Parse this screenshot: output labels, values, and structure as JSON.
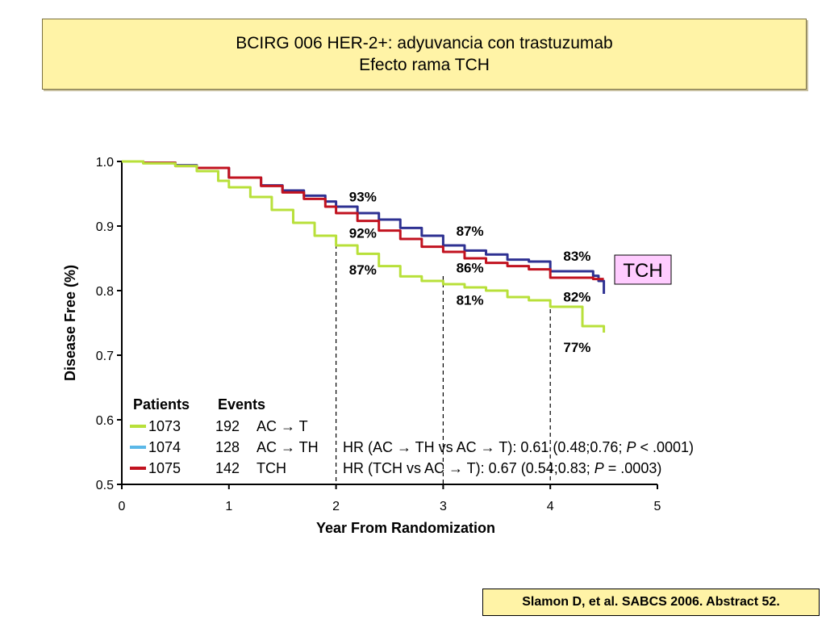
{
  "header": {
    "title_line1": "BCIRG 006 HER-2+: adyuvancia con trastuzumab",
    "title_line2": "Efecto rama TCH"
  },
  "citation": "Slamon D, et al. SABCS 2006. Abstract 52.",
  "colors": {
    "title_bg": "#fff3a6",
    "ac_t": "#b8e03a",
    "ac_th": "#2e3192",
    "tch": "#c1121f",
    "legend_ac_th_swatch": "#5bb8e8",
    "tch_box_bg": "#ffccff"
  },
  "chart_data": {
    "type": "line",
    "xlabel": "Year From Randomization",
    "ylabel": "Disease Free (%)",
    "xlim": [
      0,
      5
    ],
    "ylim": [
      0.5,
      1.0
    ],
    "xticks": [
      "0",
      "1",
      "2",
      "3",
      "4",
      "5"
    ],
    "yticks": [
      "0.5",
      "0.6",
      "0.7",
      "0.8",
      "0.9",
      "1.0"
    ],
    "xtick_values": [
      0,
      1,
      2,
      3,
      4,
      5
    ],
    "ytick_values": [
      0.5,
      0.6,
      0.7,
      0.8,
      0.9,
      1.0
    ],
    "grid": false,
    "reference_lines_x": [
      2,
      3,
      4
    ],
    "series": [
      {
        "key": "ac_th",
        "color": "#2e3192",
        "x": [
          0,
          0.2,
          0.5,
          0.7,
          1.0,
          1.3,
          1.5,
          1.7,
          1.9,
          2.0,
          2.2,
          2.4,
          2.6,
          2.8,
          3.0,
          3.2,
          3.4,
          3.6,
          3.8,
          4.0,
          4.2,
          4.4,
          4.45,
          4.5
        ],
        "y": [
          1.0,
          0.998,
          0.994,
          0.99,
          0.975,
          0.963,
          0.955,
          0.947,
          0.938,
          0.93,
          0.92,
          0.91,
          0.897,
          0.885,
          0.87,
          0.862,
          0.856,
          0.848,
          0.845,
          0.83,
          0.83,
          0.823,
          0.815,
          0.795
        ]
      },
      {
        "key": "tch",
        "color": "#c1121f",
        "x": [
          0,
          0.2,
          0.5,
          0.7,
          1.0,
          1.3,
          1.5,
          1.7,
          1.9,
          2.0,
          2.2,
          2.4,
          2.6,
          2.8,
          3.0,
          3.2,
          3.4,
          3.6,
          3.8,
          4.0,
          4.2,
          4.4,
          4.5
        ],
        "y": [
          1.0,
          0.998,
          0.993,
          0.99,
          0.975,
          0.962,
          0.952,
          0.942,
          0.93,
          0.92,
          0.908,
          0.893,
          0.88,
          0.868,
          0.86,
          0.85,
          0.843,
          0.838,
          0.833,
          0.82,
          0.82,
          0.818,
          0.818
        ]
      },
      {
        "key": "ac_t",
        "color": "#b8e03a",
        "x": [
          0,
          0.2,
          0.5,
          0.7,
          0.9,
          1.0,
          1.2,
          1.4,
          1.6,
          1.8,
          2.0,
          2.2,
          2.4,
          2.6,
          2.8,
          3.0,
          3.2,
          3.4,
          3.6,
          3.8,
          4.0,
          4.2,
          4.3,
          4.5
        ],
        "y": [
          1.0,
          0.997,
          0.993,
          0.985,
          0.97,
          0.96,
          0.945,
          0.925,
          0.905,
          0.885,
          0.87,
          0.857,
          0.838,
          0.822,
          0.815,
          0.81,
          0.805,
          0.8,
          0.79,
          0.785,
          0.775,
          0.775,
          0.745,
          0.735
        ]
      }
    ],
    "annotations": [
      {
        "text": "93%",
        "x": 2.25,
        "y": 0.938
      },
      {
        "text": "92%",
        "x": 2.25,
        "y": 0.882
      },
      {
        "text": "87%",
        "x": 2.25,
        "y": 0.825
      },
      {
        "text": "87%",
        "x": 3.25,
        "y": 0.885
      },
      {
        "text": "86%",
        "x": 3.25,
        "y": 0.828
      },
      {
        "text": "81%",
        "x": 3.25,
        "y": 0.778
      },
      {
        "text": "83%",
        "x": 4.25,
        "y": 0.846
      },
      {
        "text": "82%",
        "x": 4.25,
        "y": 0.783
      },
      {
        "text": "77%",
        "x": 4.25,
        "y": 0.705
      }
    ],
    "callout": {
      "text": "TCH"
    },
    "legend": {
      "header_patients": "Patients",
      "header_events": "Events",
      "rows": [
        {
          "key": "ac_t",
          "patients": "1073",
          "events": "192",
          "arm": "AC → T",
          "hr": ""
        },
        {
          "key": "ac_th",
          "patients": "1074",
          "events": "128",
          "arm": "AC → TH",
          "hr_pre": "HR (AC → TH vs AC → T): 0.61 (0.48;0.76; ",
          "hr_p": "P",
          "hr_post": " < .0001)"
        },
        {
          "key": "tch",
          "patients": "1075",
          "events": "142",
          "arm": "TCH",
          "hr_pre": "HR (TCH vs AC → T): 0.67 (0.54;0.83; ",
          "hr_p": "P",
          "hr_post": " = .0003)"
        }
      ]
    }
  }
}
